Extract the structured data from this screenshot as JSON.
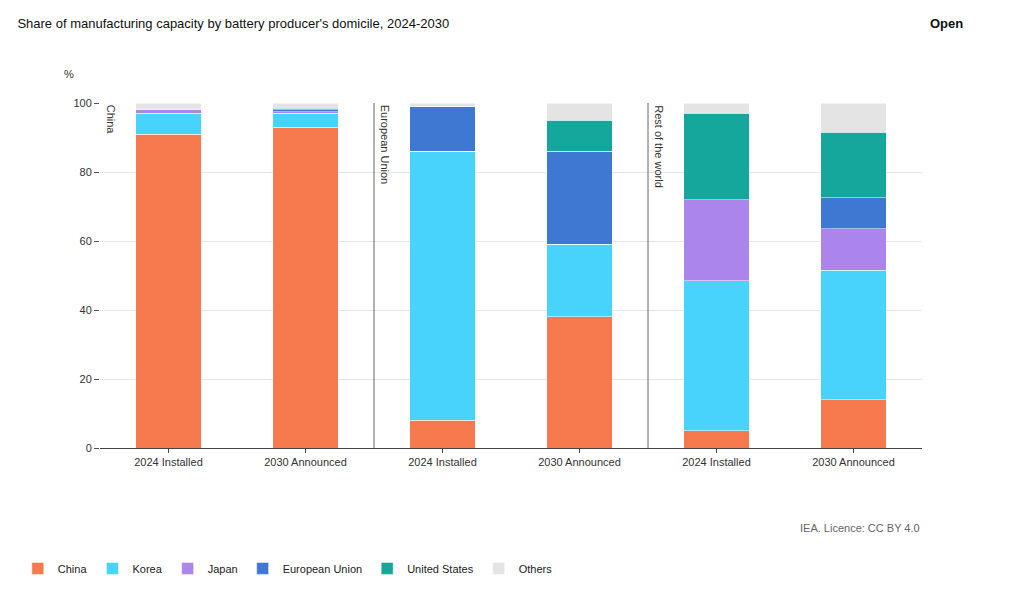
{
  "chart_data": {
    "type": "bar",
    "title": "Share of manufacturing capacity by battery producer's domicile, 2024-2030",
    "ylabel": "%",
    "stacked": true,
    "grid": true,
    "legend": "bottom left",
    "panels": [
      "China",
      "European Union",
      "Rest of the world"
    ],
    "categories": [
      "2024 Installed",
      "2030 Announced"
    ],
    "ylim": [
      0,
      100
    ],
    "yticks": [
      0,
      20,
      40,
      60,
      80,
      100
    ],
    "series": [
      {
        "name": "China",
        "color": "#f77a4f",
        "values": [
          [
            91,
            93
          ],
          [
            8,
            38
          ],
          [
            5,
            14
          ]
        ]
      },
      {
        "name": "Korea",
        "color": "#47d3fb",
        "values": [
          [
            6,
            4
          ],
          [
            78,
            21
          ],
          [
            43.5,
            37.5
          ]
        ]
      },
      {
        "name": "Japan",
        "color": "#ab84ec",
        "values": [
          [
            1,
            0.5
          ],
          [
            0,
            0
          ],
          [
            23.5,
            12
          ]
        ]
      },
      {
        "name": "European Union",
        "color": "#3f78d3",
        "values": [
          [
            0,
            0.5
          ],
          [
            13,
            27
          ],
          [
            0,
            9
          ]
        ]
      },
      {
        "name": "United States",
        "color": "#15a79b",
        "values": [
          [
            0,
            0.5
          ],
          [
            0,
            9
          ],
          [
            25,
            19
          ]
        ]
      },
      {
        "name": "Others",
        "color": "#e4e4e4",
        "values": [
          [
            2,
            1.5
          ],
          [
            1,
            5
          ],
          [
            3,
            8.5
          ]
        ]
      }
    ],
    "source": "IEA. Licence: CC BY 4.0",
    "button": "Open"
  }
}
